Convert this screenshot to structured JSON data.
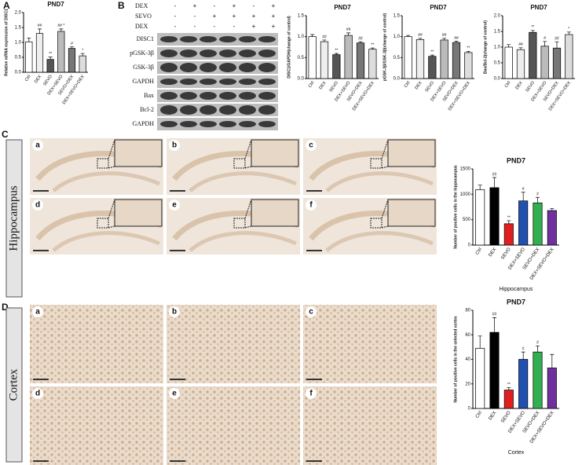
{
  "panel_labels": [
    "A",
    "B",
    "C",
    "D"
  ],
  "blot": {
    "treatment_rows": [
      {
        "label": "DEX",
        "signs": [
          "-",
          "+",
          "-",
          "+",
          "-",
          "+"
        ]
      },
      {
        "label": "SEVO",
        "signs": [
          "-",
          "-",
          "+",
          "+",
          "+",
          "+"
        ]
      },
      {
        "label": "DEX",
        "signs": [
          "-",
          "-",
          "-",
          "-",
          "+",
          "+"
        ]
      }
    ],
    "bands": [
      "DISC1",
      "pGSK-3β",
      "GSK-3β",
      "GAPDH",
      "Bax",
      "Bcl-2",
      "GAPDH"
    ]
  },
  "hippocampus": {
    "label": "Hippocampus",
    "panels": [
      "a",
      "b",
      "c",
      "d",
      "e",
      "f"
    ]
  },
  "cortex": {
    "label": "Cortex",
    "panels": [
      "a",
      "b",
      "c",
      "d",
      "e",
      "f"
    ]
  },
  "chart_data": [
    {
      "type": "bar",
      "title": "PND7",
      "ylabel": "Relative mRNA expression of DISC1",
      "categories": [
        "Ctrl",
        "DEX",
        "SEVO",
        "DEX+SEVO",
        "SEVO+DEX",
        "DEX+SEVO+DEX"
      ],
      "values": [
        1.02,
        1.3,
        0.43,
        1.37,
        0.8,
        0.55
      ],
      "errors": [
        0.13,
        0.15,
        0.08,
        0.08,
        0.05,
        0.08
      ],
      "annotations": [
        null,
        "##",
        "**",
        "##\n*",
        "#",
        "*"
      ],
      "colors": [
        "#ffffff",
        "#eeeeee",
        "#555555",
        "#bbbbbb",
        "#777777",
        "#dddddd"
      ],
      "ylim": [
        0,
        2
      ],
      "yticks": [
        {
          "value": 0,
          "label": "0.0"
        },
        {
          "value": 0.5,
          "label": "0.5"
        },
        {
          "value": 1,
          "label": "1.0"
        },
        {
          "value": 1.5,
          "label": "1.5"
        },
        {
          "value": 2,
          "label": "2.0"
        }
      ]
    },
    {
      "type": "bar",
      "title": "PND7",
      "ylabel": "DISC1/GAPDH(change of control)",
      "categories": [
        "Ctrl",
        "DEX",
        "SEVO",
        "DEX+SEVO",
        "SEVO+DEX",
        "DEX+SEVO+DEX"
      ],
      "values": [
        1.0,
        0.88,
        0.57,
        1.03,
        0.85,
        0.7
      ],
      "errors": [
        0.05,
        0.04,
        0.03,
        0.06,
        0.03,
        0.03
      ],
      "annotations": [
        null,
        "##",
        "**",
        "##",
        "##",
        "**"
      ],
      "colors": [
        "#ffffff",
        "#eeeeee",
        "#555555",
        "#bbbbbb",
        "#777777",
        "#dddddd"
      ],
      "ylim": [
        0,
        1.5
      ],
      "yticks": [
        {
          "value": 0,
          "label": "0.0"
        },
        {
          "value": 0.5,
          "label": "0.5"
        },
        {
          "value": 1,
          "label": "1.0"
        },
        {
          "value": 1.5,
          "label": "1.5"
        }
      ]
    },
    {
      "type": "bar",
      "title": "PND7",
      "ylabel": "pGSK-3β/GSK-3β(change of control)",
      "categories": [
        "Ctrl",
        "DEX",
        "SEVO",
        "DEX+SEVO",
        "SEVO+DEX",
        "DEX+SEVO+DEX"
      ],
      "values": [
        1.0,
        0.93,
        0.53,
        0.92,
        0.86,
        0.62
      ],
      "errors": [
        0.03,
        0.03,
        0.03,
        0.04,
        0.03,
        0.03
      ],
      "annotations": [
        null,
        "##",
        "**",
        "##",
        "##",
        "**"
      ],
      "colors": [
        "#ffffff",
        "#eeeeee",
        "#555555",
        "#bbbbbb",
        "#777777",
        "#dddddd"
      ],
      "ylim": [
        0,
        1.5
      ],
      "yticks": [
        {
          "value": 0,
          "label": "0.0"
        },
        {
          "value": 0.5,
          "label": "0.5"
        },
        {
          "value": 1,
          "label": "1.0"
        },
        {
          "value": 1.5,
          "label": "1.5"
        }
      ]
    },
    {
      "type": "bar",
      "title": "PND7",
      "ylabel": "Bax/Bcl-2(change of control)",
      "categories": [
        "Ctrl",
        "DEX",
        "SEVO",
        "DEX+SEVO",
        "SEVO+DEX",
        "DEX+SEVO+DEX"
      ],
      "values": [
        1.0,
        0.92,
        1.47,
        1.03,
        0.97,
        1.4
      ],
      "errors": [
        0.08,
        0.06,
        0.06,
        0.15,
        0.2,
        0.08
      ],
      "annotations": [
        null,
        "##",
        "**",
        "#",
        "##",
        "*"
      ],
      "colors": [
        "#ffffff",
        "#eeeeee",
        "#555555",
        "#bbbbbb",
        "#777777",
        "#dddddd"
      ],
      "ylim": [
        0,
        2
      ],
      "yticks": [
        {
          "value": 0,
          "label": "0.0"
        },
        {
          "value": 0.5,
          "label": "0.5"
        },
        {
          "value": 1,
          "label": "1.0"
        },
        {
          "value": 1.5,
          "label": "1.5"
        },
        {
          "value": 2,
          "label": "2.0"
        }
      ]
    },
    {
      "type": "bar",
      "title": "PND7",
      "ylabel": "Number of positive cells in the hippocampus",
      "xlabel": "Hippocampus",
      "categories": [
        "Ctrl",
        "DEX",
        "SEVO",
        "DEX+SEVO",
        "SEVO+DEX",
        "DEX+SEVO+DEX"
      ],
      "values": [
        1090,
        1130,
        420,
        870,
        830,
        680
      ],
      "errors": [
        90,
        200,
        60,
        170,
        110,
        40
      ],
      "annotations": [
        null,
        "##",
        "**",
        "#",
        "#",
        null
      ],
      "colors": [
        "#ffffff",
        "#000000",
        "#e02020",
        "#2050b0",
        "#30b050",
        "#7030a0"
      ],
      "ylim": [
        0,
        1500
      ],
      "yticks": [
        0,
        500,
        1000,
        1500
      ]
    },
    {
      "type": "bar",
      "title": "PND7",
      "ylabel": "Number of positive cells in the selected cortex",
      "xlabel": "Cortex",
      "categories": [
        "Ctrl",
        "DEX",
        "SEVO",
        "DEX+SEVO",
        "SEVO+DEX",
        "DEX+SEVO+DEX"
      ],
      "values": [
        49,
        62,
        15,
        40,
        46,
        33
      ],
      "errors": [
        10,
        12,
        2,
        6,
        5,
        11
      ],
      "annotations": [
        null,
        "##",
        "**",
        "#",
        "#",
        null
      ],
      "colors": [
        "#ffffff",
        "#000000",
        "#e02020",
        "#2050b0",
        "#30b050",
        "#7030a0"
      ],
      "ylim": [
        0,
        80
      ],
      "yticks": [
        0,
        20,
        40,
        60,
        80
      ]
    }
  ]
}
